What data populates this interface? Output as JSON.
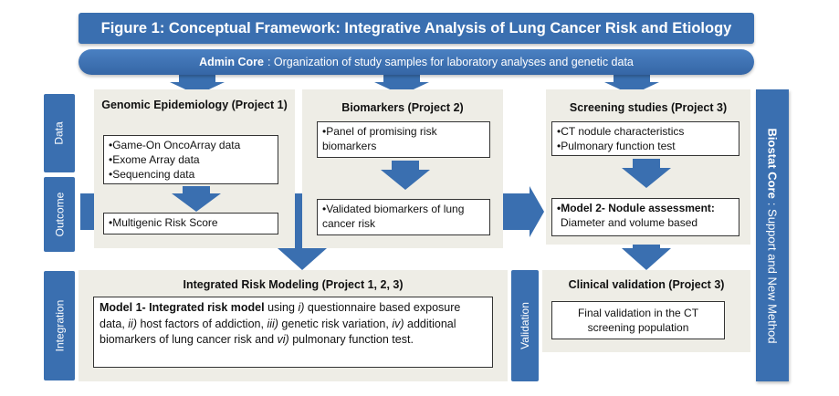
{
  "title": "Figure 1: Conceptual Framework: Integrative Analysis of Lung Cancer Risk and Etiology",
  "admin_core": {
    "label": "Admin Core",
    "text": ": Organization of study samples for laboratory analyses and genetic data"
  },
  "row_labels": {
    "data": "Data",
    "outcome": "Outcome",
    "integration": "Integration",
    "validation": "Validation"
  },
  "project1": {
    "title": "Genomic Epidemiology (Project 1)",
    "data_items": [
      "•Game-On OncoArray data",
      "•Exome Array data",
      "•Sequencing data"
    ],
    "outcome": "•Multigenic Risk Score"
  },
  "project2": {
    "title": "Biomarkers (Project 2)",
    "data": "•Panel of promising risk biomarkers",
    "outcome": "•Validated biomarkers of lung cancer risk"
  },
  "project3": {
    "title": "Screening studies (Project 3)",
    "data_items": [
      "•CT nodule characteristics",
      "•Pulmonary function test"
    ],
    "outcome_bold": "•Model 2- Nodule assessment:",
    "outcome_rest": "Diameter and volume based"
  },
  "integration": {
    "title": "Integrated Risk Modeling (Project 1, 2, 3)",
    "model_bold": "Model 1- Integrated risk model",
    "t1": " using ",
    "i1": "i)",
    "t2": " questionnaire based exposure data, ",
    "i2": "ii)",
    "t3": " host factors of addiction, ",
    "i3": "iii)",
    "t4": " genetic risk variation, ",
    "i4": "iv)",
    "t5": " additional biomarkers of lung cancer risk and ",
    "i5": "vi)",
    "t6": " pulmonary function test."
  },
  "validation": {
    "title": "Clinical validation (Project 3)",
    "text": "Final validation in the CT screening population"
  },
  "biostat": {
    "label": "Biostat Core",
    "text": ": Support and New Method"
  },
  "colors": {
    "blue": "#3a6fb0",
    "panel": "#eeede6"
  }
}
